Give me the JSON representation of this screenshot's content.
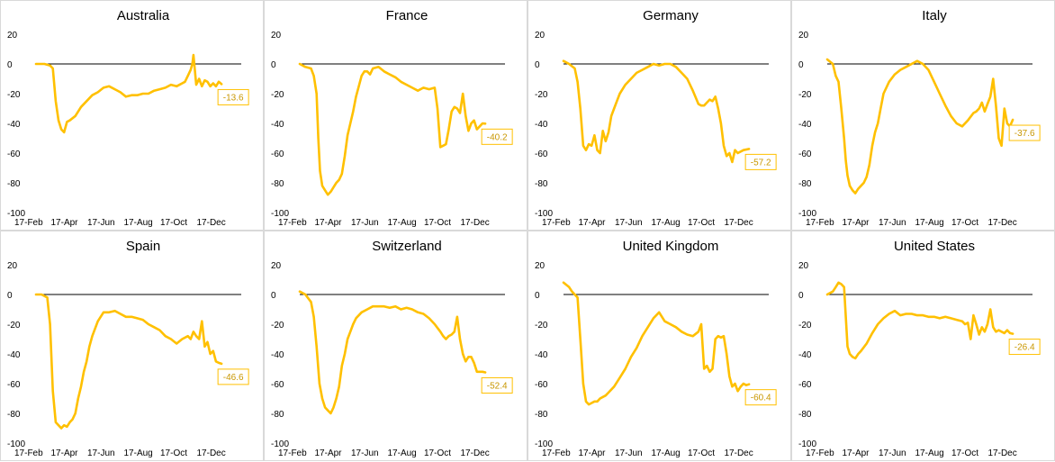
{
  "colors": {
    "line": "#FFC000",
    "zero_line": "#000000",
    "label_text": "#C99700",
    "label_border": "#FFC000",
    "panel_border": "#D9D9D9"
  },
  "chart_data": [
    {
      "type": "line",
      "title": "Australia",
      "x_tick_labels": [
        "17-Feb",
        "17-Apr",
        "17-Jun",
        "17-Aug",
        "17-Oct",
        "17-Dec"
      ],
      "y_ticks": [
        20,
        0,
        -20,
        -40,
        -60,
        -80,
        -100
      ],
      "ylim": [
        -100,
        20
      ],
      "xlim": [
        0,
        365
      ],
      "end_label": "-13.6",
      "series": [
        {
          "x": [
            0,
            15,
            25,
            30,
            35,
            40,
            45,
            50,
            55,
            60,
            70,
            80,
            90,
            100,
            110,
            120,
            130,
            140,
            150,
            160,
            170,
            180,
            190,
            200,
            210,
            220,
            230,
            240,
            250,
            260,
            265,
            270,
            275,
            278,
            280,
            285,
            290,
            295,
            300,
            305,
            310,
            315,
            320,
            325,
            330
          ],
          "y": [
            0,
            0,
            -1,
            -3,
            -25,
            -38,
            -44,
            -46,
            -39,
            -38,
            -35,
            -29,
            -25,
            -21,
            -19,
            -16,
            -15,
            -17,
            -19,
            -22,
            -21,
            -21,
            -20,
            -20,
            -18,
            -17,
            -16,
            -14,
            -15,
            -13,
            -12,
            -8,
            -4,
            0,
            6,
            -14,
            -10,
            -15,
            -11,
            -12,
            -15,
            -13,
            -15,
            -12,
            -13.6
          ]
        }
      ]
    },
    {
      "type": "line",
      "title": "France",
      "x_tick_labels": [
        "17-Feb",
        "17-Apr",
        "17-Jun",
        "17-Aug",
        "17-Oct",
        "17-Dec"
      ],
      "y_ticks": [
        20,
        0,
        -20,
        -40,
        -60,
        -80,
        -100
      ],
      "ylim": [
        -100,
        20
      ],
      "xlim": [
        0,
        365
      ],
      "end_label": "-40.2",
      "series": [
        {
          "x": [
            0,
            10,
            20,
            25,
            30,
            33,
            36,
            40,
            45,
            50,
            55,
            60,
            65,
            70,
            75,
            80,
            85,
            90,
            95,
            100,
            105,
            110,
            115,
            120,
            125,
            130,
            140,
            150,
            160,
            170,
            180,
            190,
            200,
            210,
            220,
            230,
            240,
            245,
            250,
            255,
            260,
            265,
            270,
            275,
            280,
            285,
            290,
            295,
            300,
            305,
            310,
            315,
            320,
            325,
            330
          ],
          "y": [
            0,
            -2,
            -3,
            -8,
            -20,
            -50,
            -72,
            -82,
            -85,
            -88,
            -86,
            -83,
            -80,
            -78,
            -74,
            -62,
            -48,
            -40,
            -32,
            -22,
            -15,
            -8,
            -5,
            -5,
            -7,
            -3,
            -2,
            -5,
            -7,
            -9,
            -12,
            -14,
            -16,
            -18,
            -16,
            -17,
            -16,
            -30,
            -56,
            -55,
            -54,
            -44,
            -32,
            -29,
            -30,
            -33,
            -20,
            -35,
            -45,
            -40,
            -38,
            -44,
            -42,
            -40,
            -40.2
          ]
        }
      ]
    },
    {
      "type": "line",
      "title": "Germany",
      "x_tick_labels": [
        "17-Feb",
        "17-Apr",
        "17-Jun",
        "17-Aug",
        "17-Oct",
        "17-Dec"
      ],
      "y_ticks": [
        20,
        0,
        -20,
        -40,
        -60,
        -80,
        -100
      ],
      "ylim": [
        -100,
        20
      ],
      "xlim": [
        0,
        365
      ],
      "end_label": "-57.2",
      "series": [
        {
          "x": [
            0,
            10,
            20,
            25,
            30,
            35,
            40,
            45,
            50,
            55,
            60,
            65,
            70,
            75,
            80,
            85,
            90,
            95,
            100,
            110,
            120,
            130,
            140,
            150,
            160,
            170,
            180,
            190,
            200,
            210,
            220,
            230,
            240,
            245,
            250,
            255,
            260,
            265,
            270,
            275,
            280,
            285,
            290,
            295,
            300,
            305,
            310,
            320,
            330
          ],
          "y": [
            2,
            0,
            -3,
            -12,
            -30,
            -55,
            -58,
            -54,
            -55,
            -48,
            -58,
            -60,
            -45,
            -52,
            -46,
            -35,
            -30,
            -25,
            -20,
            -14,
            -10,
            -6,
            -4,
            -2,
            0,
            -1,
            0,
            0,
            -2,
            -6,
            -10,
            -18,
            -27,
            -28,
            -28,
            -26,
            -24,
            -25,
            -22,
            -30,
            -40,
            -55,
            -62,
            -60,
            -66,
            -58,
            -60,
            -58,
            -57.2
          ]
        }
      ]
    },
    {
      "type": "line",
      "title": "Italy",
      "x_tick_labels": [
        "17-Feb",
        "17-Apr",
        "17-Jun",
        "17-Aug",
        "17-Oct",
        "17-Dec"
      ],
      "y_ticks": [
        20,
        0,
        -20,
        -40,
        -60,
        -80,
        -100
      ],
      "ylim": [
        -100,
        20
      ],
      "xlim": [
        0,
        365
      ],
      "end_label": "-37.6",
      "series": [
        {
          "x": [
            0,
            10,
            15,
            20,
            25,
            30,
            33,
            36,
            40,
            45,
            50,
            55,
            60,
            65,
            70,
            75,
            80,
            85,
            90,
            95,
            100,
            110,
            120,
            130,
            140,
            150,
            160,
            170,
            180,
            190,
            200,
            210,
            220,
            230,
            240,
            250,
            260,
            265,
            270,
            275,
            280,
            285,
            290,
            295,
            300,
            305,
            310,
            315,
            320,
            325,
            330
          ],
          "y": [
            3,
            0,
            -8,
            -12,
            -30,
            -50,
            -65,
            -75,
            -82,
            -85,
            -87,
            -84,
            -82,
            -80,
            -76,
            -68,
            -55,
            -46,
            -40,
            -30,
            -20,
            -12,
            -7,
            -4,
            -2,
            0,
            2,
            0,
            -4,
            -12,
            -20,
            -28,
            -35,
            -40,
            -42,
            -38,
            -33,
            -32,
            -30,
            -26,
            -32,
            -27,
            -22,
            -10,
            -28,
            -50,
            -55,
            -30,
            -40,
            -42,
            -37.6
          ]
        }
      ]
    },
    {
      "type": "line",
      "title": "Spain",
      "x_tick_labels": [
        "17-Feb",
        "17-Apr",
        "17-Jun",
        "17-Aug",
        "17-Oct",
        "17-Dec"
      ],
      "y_ticks": [
        20,
        0,
        -20,
        -40,
        -60,
        -80,
        -100
      ],
      "ylim": [
        -100,
        20
      ],
      "xlim": [
        0,
        365
      ],
      "end_label": "-46.6",
      "series": [
        {
          "x": [
            0,
            10,
            20,
            25,
            30,
            35,
            40,
            45,
            50,
            55,
            60,
            65,
            70,
            75,
            80,
            85,
            90,
            95,
            100,
            110,
            120,
            130,
            140,
            150,
            160,
            170,
            180,
            190,
            200,
            210,
            220,
            230,
            240,
            250,
            260,
            270,
            275,
            280,
            285,
            290,
            295,
            300,
            305,
            310,
            315,
            320,
            325,
            330
          ],
          "y": [
            0,
            0,
            -2,
            -20,
            -65,
            -86,
            -88,
            -90,
            -88,
            -89,
            -86,
            -84,
            -80,
            -70,
            -62,
            -52,
            -45,
            -35,
            -28,
            -18,
            -12,
            -12,
            -11,
            -13,
            -15,
            -15,
            -16,
            -17,
            -20,
            -22,
            -24,
            -28,
            -30,
            -33,
            -30,
            -28,
            -30,
            -25,
            -28,
            -30,
            -18,
            -35,
            -32,
            -40,
            -38,
            -45,
            -46,
            -46.6
          ]
        }
      ]
    },
    {
      "type": "line",
      "title": "Switzerland",
      "x_tick_labels": [
        "17-Feb",
        "17-Apr",
        "17-Jun",
        "17-Aug",
        "17-Oct",
        "17-Dec"
      ],
      "y_ticks": [
        20,
        0,
        -20,
        -40,
        -60,
        -80,
        -100
      ],
      "ylim": [
        -100,
        20
      ],
      "xlim": [
        0,
        365
      ],
      "end_label": "-52.4",
      "series": [
        {
          "x": [
            0,
            10,
            20,
            25,
            30,
            35,
            40,
            45,
            50,
            55,
            60,
            65,
            70,
            75,
            80,
            85,
            90,
            95,
            100,
            110,
            120,
            130,
            140,
            150,
            160,
            170,
            180,
            190,
            200,
            210,
            220,
            230,
            240,
            250,
            255,
            260,
            265,
            270,
            275,
            280,
            285,
            290,
            295,
            300,
            305,
            310,
            315,
            320,
            325,
            330
          ],
          "y": [
            2,
            0,
            -5,
            -15,
            -35,
            -60,
            -70,
            -76,
            -78,
            -80,
            -76,
            -70,
            -62,
            -48,
            -40,
            -30,
            -25,
            -20,
            -16,
            -12,
            -10,
            -8,
            -8,
            -8,
            -9,
            -8,
            -10,
            -9,
            -10,
            -12,
            -13,
            -16,
            -20,
            -25,
            -28,
            -30,
            -28,
            -27,
            -25,
            -15,
            -30,
            -40,
            -45,
            -42,
            -42,
            -46,
            -52,
            -52,
            -52,
            -52.4
          ]
        }
      ]
    },
    {
      "type": "line",
      "title": "United Kingdom",
      "x_tick_labels": [
        "17-Feb",
        "17-Apr",
        "17-Jun",
        "17-Aug",
        "17-Oct",
        "17-Dec"
      ],
      "y_ticks": [
        20,
        0,
        -20,
        -40,
        -60,
        -80,
        -100
      ],
      "ylim": [
        -100,
        20
      ],
      "xlim": [
        0,
        365
      ],
      "end_label": "-60.4",
      "series": [
        {
          "x": [
            0,
            10,
            15,
            20,
            25,
            30,
            35,
            40,
            45,
            50,
            55,
            60,
            65,
            70,
            75,
            80,
            90,
            100,
            110,
            120,
            130,
            140,
            150,
            160,
            170,
            180,
            190,
            200,
            210,
            220,
            230,
            240,
            245,
            250,
            255,
            260,
            265,
            270,
            275,
            280,
            285,
            290,
            295,
            300,
            305,
            310,
            315,
            320,
            325,
            330
          ],
          "y": [
            8,
            5,
            2,
            0,
            -2,
            -30,
            -60,
            -72,
            -74,
            -73,
            -72,
            -72,
            -70,
            -69,
            -68,
            -66,
            -62,
            -56,
            -50,
            -42,
            -36,
            -28,
            -22,
            -16,
            -12,
            -18,
            -20,
            -22,
            -25,
            -27,
            -28,
            -25,
            -20,
            -50,
            -48,
            -52,
            -50,
            -30,
            -28,
            -29,
            -28,
            -40,
            -55,
            -62,
            -60,
            -65,
            -62,
            -60,
            -61,
            -60.4
          ]
        }
      ]
    },
    {
      "type": "line",
      "title": "United States",
      "x_tick_labels": [
        "17-Feb",
        "17-Apr",
        "17-Jun",
        "17-Aug",
        "17-Oct",
        "17-Dec"
      ],
      "y_ticks": [
        20,
        0,
        -20,
        -40,
        -60,
        -80,
        -100
      ],
      "ylim": [
        -100,
        20
      ],
      "xlim": [
        0,
        365
      ],
      "end_label": "-26.4",
      "series": [
        {
          "x": [
            0,
            10,
            15,
            20,
            25,
            30,
            33,
            36,
            40,
            45,
            50,
            55,
            60,
            70,
            80,
            90,
            100,
            110,
            120,
            130,
            140,
            150,
            160,
            170,
            180,
            190,
            200,
            210,
            220,
            230,
            240,
            245,
            250,
            255,
            260,
            265,
            270,
            275,
            280,
            285,
            290,
            295,
            300,
            305,
            310,
            315,
            320,
            325,
            330
          ],
          "y": [
            0,
            2,
            5,
            8,
            7,
            5,
            -15,
            -35,
            -40,
            -42,
            -43,
            -40,
            -38,
            -33,
            -26,
            -20,
            -16,
            -13,
            -11,
            -14,
            -13,
            -13,
            -14,
            -14,
            -15,
            -15,
            -16,
            -15,
            -16,
            -17,
            -18,
            -20,
            -19,
            -30,
            -14,
            -20,
            -27,
            -22,
            -25,
            -20,
            -10,
            -22,
            -25,
            -24,
            -25,
            -26,
            -24,
            -26,
            -26.4
          ]
        }
      ]
    }
  ]
}
